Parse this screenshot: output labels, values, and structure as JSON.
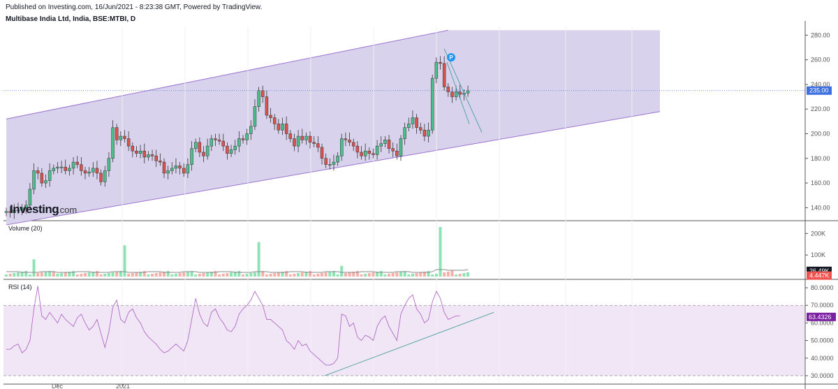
{
  "header": {
    "published": "Published on Investing.com, 16/Jun/2021 - 8:23:38 GMT, Powered by TradingView.",
    "symbol": "Multibase India Ltd, India, BSE:MTBI, D"
  },
  "logo": {
    "brand": "Investing",
    "suffix": ".com"
  },
  "colors": {
    "up": "#26a69a",
    "up_fill": "#4cbe8c",
    "down": "#ef5350",
    "down_fill": "#d9534f",
    "channel_fill": "#d8d2ec",
    "channel_line": "#9b72cf",
    "price_line": "#3d6fe0",
    "rsi_fill": "#f1e6f5",
    "rsi_line": "#b069c7",
    "trend_line": "#4a9ea0",
    "vol_up": "#8ee3b4",
    "vol_down": "#f6b0aa",
    "vol_ma": "#888888"
  },
  "chart_data": {
    "type": "candlestick",
    "price_axis": {
      "ticks": [
        "140.00",
        "160.00",
        "180.00",
        "200.00",
        "220.00",
        "240.00",
        "260.00",
        "280.00"
      ],
      "range": [
        130,
        287
      ]
    },
    "last_price": "235.00",
    "x_labels": [
      "Dec",
      "2021"
    ],
    "pattern_marker": "P",
    "close_series": [
      137,
      136,
      138,
      138,
      140,
      142,
      155,
      170,
      168,
      160,
      162,
      170,
      172,
      173,
      173,
      170,
      172,
      177,
      175,
      170,
      168,
      169,
      172,
      168,
      161,
      170,
      180,
      205,
      195,
      198,
      196,
      190,
      186,
      184,
      186,
      181,
      183,
      182,
      178,
      177,
      168,
      170,
      172,
      174,
      172,
      168,
      175,
      188,
      193,
      185,
      182,
      190,
      196,
      195,
      194,
      190,
      184,
      187,
      190,
      196,
      195,
      200,
      206,
      222,
      235,
      230,
      215,
      213,
      208,
      203,
      208,
      200,
      196,
      190,
      198,
      195,
      198,
      193,
      192,
      189,
      180,
      175,
      175,
      177,
      182,
      196,
      195,
      193,
      190,
      185,
      182,
      186,
      184,
      183,
      190,
      192,
      195,
      188,
      186,
      182,
      196,
      205,
      208,
      213,
      205,
      203,
      198,
      203,
      245,
      258,
      257,
      238,
      234,
      230,
      234,
      232,
      233,
      235
    ],
    "channel": {
      "upper": [
        [
          0,
          212
        ],
        [
          112,
          284
        ]
      ],
      "lower": [
        [
          0,
          126
        ],
        [
          124,
          218
        ]
      ]
    },
    "volume": {
      "label": "Volume (20)",
      "ticks": [
        "100K",
        "200K"
      ],
      "tag_ma": "26.49K",
      "tag_vol": "4.447K",
      "bars": [
        [
          7,
          "up",
          80
        ],
        [
          12,
          "down",
          25
        ],
        [
          30,
          "up",
          145
        ],
        [
          64,
          "up",
          160
        ],
        [
          85,
          "up",
          50
        ],
        [
          110,
          "up",
          230
        ],
        [
          113,
          "down",
          30
        ]
      ]
    },
    "rsi": {
      "label": "RSI (14)",
      "ticks": [
        "30.0000",
        "40.0000",
        "50.0000",
        "60.0000",
        "70.0000",
        "80.0000"
      ],
      "levels": [
        30,
        70
      ],
      "last": "63.4326",
      "series": [
        45,
        45,
        47,
        48,
        43,
        45,
        50,
        68,
        81,
        64,
        62,
        66,
        63,
        60,
        65,
        62,
        60,
        58,
        63,
        65,
        60,
        56,
        58,
        62,
        54,
        46,
        55,
        69,
        73,
        62,
        60,
        66,
        68,
        63,
        60,
        55,
        52,
        50,
        48,
        45,
        43,
        44,
        46,
        48,
        46,
        44,
        50,
        62,
        74,
        65,
        60,
        58,
        66,
        68,
        63,
        60,
        56,
        55,
        58,
        65,
        68,
        70,
        73,
        78,
        74,
        70,
        62,
        62,
        60,
        58,
        56,
        50,
        48,
        45,
        50,
        47,
        48,
        44,
        42,
        40,
        38,
        36,
        36,
        37,
        40,
        65,
        64,
        58,
        60,
        52,
        50,
        53,
        52,
        50,
        58,
        62,
        64,
        58,
        54,
        50,
        65,
        70,
        74,
        76,
        68,
        65,
        60,
        62,
        72,
        78,
        74,
        66,
        62,
        63,
        64,
        64
      ]
    }
  }
}
